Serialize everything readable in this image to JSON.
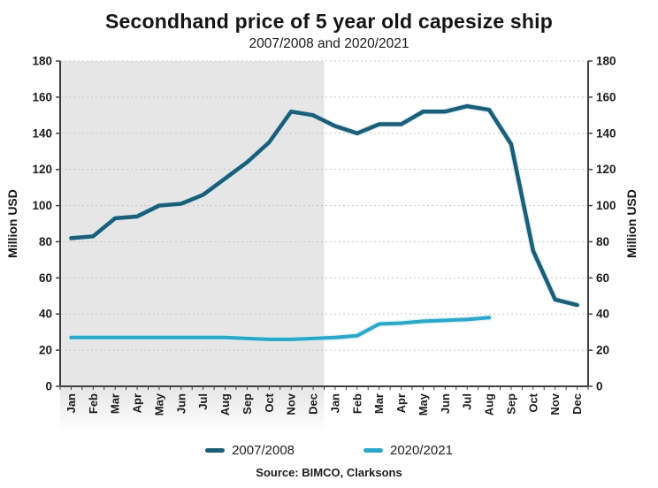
{
  "colors": {
    "axis": "#3f3f3f",
    "grid": "#c8c8c8",
    "tick_text": "#1c1c1c",
    "shading_fill": "#e6e6e6"
  },
  "chart_data": {
    "type": "line",
    "title": "Secondhand price of 5 year old capesize ship",
    "subtitle": "2007/2008 and 2020/2021",
    "source": "Source: BIMCO, Clarksons",
    "ylabel_left": "Million USD",
    "ylabel_right": "Million USD",
    "ylim": [
      0,
      180
    ],
    "ytick_step": 20,
    "grid": "horizontal-dashed",
    "legend_position": "bottom",
    "x": [
      "Jan",
      "Feb",
      "Mar",
      "Apr",
      "May",
      "Jun",
      "Jul",
      "Aug",
      "Sep",
      "Oct",
      "Nov",
      "Dec",
      "Jan",
      "Feb",
      "Mar",
      "Apr",
      "May",
      "Jun",
      "Jul",
      "Aug",
      "Sep",
      "Oct",
      "Nov",
      "Dec"
    ],
    "series": [
      {
        "name": "2007/2008",
        "color": "#1b5e78",
        "halo": "#cfe4ec",
        "values": [
          82,
          83,
          93,
          94,
          100,
          101,
          106,
          115,
          124,
          135,
          152,
          150,
          144,
          140,
          145,
          145,
          152,
          152,
          155,
          153,
          134,
          75,
          48,
          45
        ]
      },
      {
        "name": "2020/2021",
        "color": "#2ba7c9",
        "halo": "#d2edf5",
        "values": [
          27,
          27,
          27,
          27,
          27,
          27,
          27,
          27,
          26.5,
          26,
          26,
          26.5,
          27,
          28,
          34.5,
          35,
          36,
          36.5,
          37,
          38
        ]
      }
    ],
    "shaded_region": {
      "start_category_index": 0,
      "end_category_index": 12,
      "fill": "#e6e6e6",
      "note": "first year (Jan-Dec) shaded grey, fading below axis"
    }
  }
}
